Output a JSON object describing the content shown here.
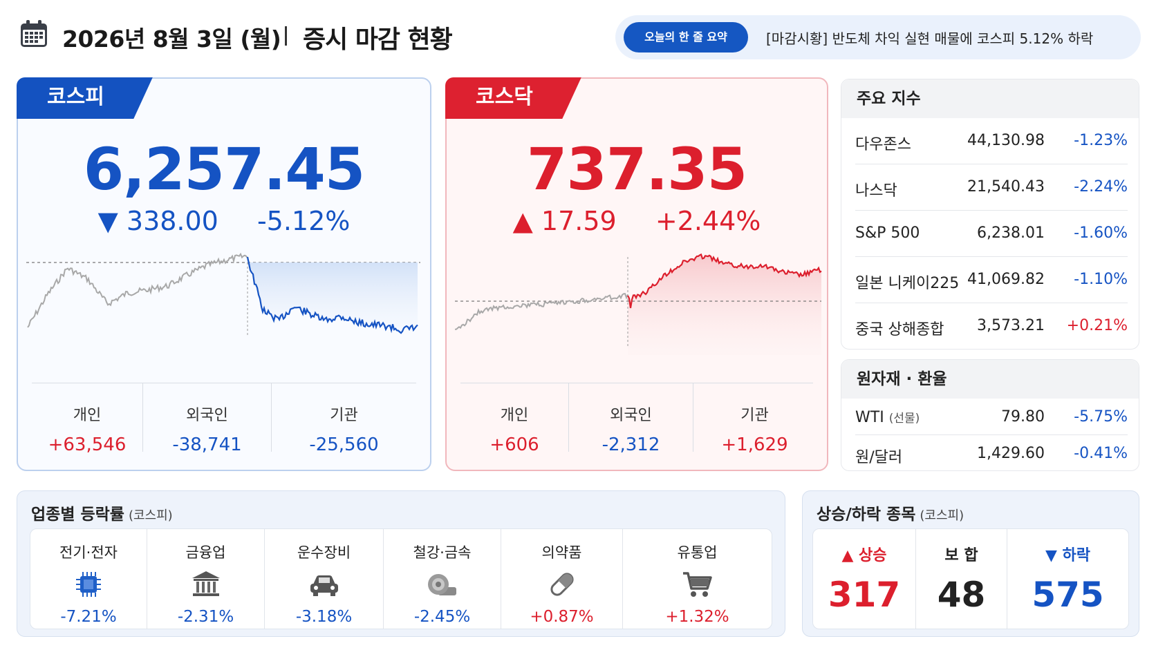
{
  "header": {
    "date": "2026년 8월 3일 (월)",
    "title": "증시 마감 현황",
    "summary_label": "오늘의 한 줄 요약",
    "summary_text": "[마감시황] 반도체 차익 실현 매물에 코스피 5.12% 하락"
  },
  "kospi": {
    "tab": "코스피",
    "value": "6,257.45",
    "change": "▼ 338.00",
    "change_pct": "-5.12%",
    "investors": [
      {
        "label": "개인",
        "value": "+63,546"
      },
      {
        "label": "외국인",
        "value": "-38,741"
      },
      {
        "label": "기관",
        "value": "-25,560"
      }
    ]
  },
  "kosdaq": {
    "tab": "코스닥",
    "value": "737.35",
    "change": "▲ 17.59",
    "change_pct": "+2.44%",
    "investors": [
      {
        "label": "개인",
        "value": "+606"
      },
      {
        "label": "외국인",
        "value": "-2,312"
      },
      {
        "label": "기관",
        "value": "+1,629"
      }
    ]
  },
  "major": {
    "title": "주요 지수",
    "rows": [
      {
        "name": "다우존스",
        "value": "44,130.98",
        "change": "-1.23%"
      },
      {
        "name": "나스닥",
        "value": "21,540.43",
        "change": "-2.24%"
      },
      {
        "name": "S&P 500",
        "value": "6,238.01",
        "change": "-1.60%"
      },
      {
        "name": "일본 니케이225",
        "value": "41,069.82",
        "change": "-1.10%"
      },
      {
        "name": "중국 상해종합",
        "value": "3,573.21",
        "change": "+0.21%"
      }
    ]
  },
  "fx": {
    "title": "원자재 · 환율",
    "rows": [
      {
        "name": "WTI",
        "sub": "(선물)",
        "value": "79.80",
        "change": "-5.75%"
      },
      {
        "name": "원/달러",
        "sub": "",
        "value": "1,429.60",
        "change": "-0.41%"
      }
    ]
  },
  "sector": {
    "title": "업종별 등락률",
    "sub": "(코스피)",
    "items": [
      {
        "name": "전기·전자",
        "icon": "chip-icon",
        "value": "-7.21%"
      },
      {
        "name": "금융업",
        "icon": "bank-icon",
        "value": "-2.31%"
      },
      {
        "name": "운수장비",
        "icon": "car-icon",
        "value": "-3.18%"
      },
      {
        "name": "철강·금속",
        "icon": "steel-roll-icon",
        "value": "-2.45%"
      },
      {
        "name": "의약품",
        "icon": "pill-icon",
        "value": "+0.87%"
      },
      {
        "name": "유통업",
        "icon": "cart-icon",
        "value": "+1.32%"
      }
    ]
  },
  "updown": {
    "title": "상승/하락 종목",
    "sub": "(코스피)",
    "up_label": "상승",
    "up_value": "317",
    "flat_label": "보 합",
    "flat_value": "48",
    "down_label": "하락",
    "down_value": "575"
  },
  "colors": {
    "up": "#dc1f2d",
    "down": "#1553c3",
    "kospi_brand": "#1452c0",
    "kosdaq_brand": "#dd2130"
  }
}
